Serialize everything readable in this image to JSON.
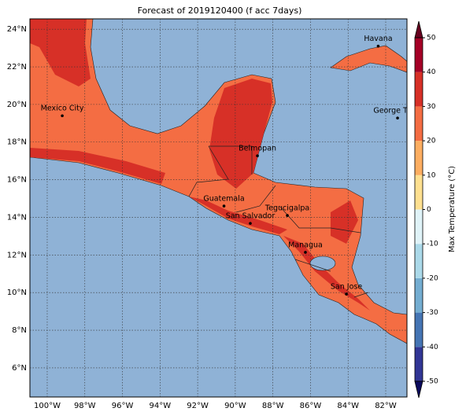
{
  "title": "Forecast of 2019120400 (f acc 7days)",
  "map": {
    "xlim": [
      -100.92,
      -80.87
    ],
    "ylim": [
      4.45,
      24.55
    ],
    "xticks": [
      {
        "value": -100,
        "label": "100°W"
      },
      {
        "value": -98,
        "label": "98°W"
      },
      {
        "value": -96,
        "label": "96°W"
      },
      {
        "value": -94,
        "label": "94°W"
      },
      {
        "value": -92,
        "label": "92°W"
      },
      {
        "value": -90,
        "label": "90°W"
      },
      {
        "value": -88,
        "label": "88°W"
      },
      {
        "value": -86,
        "label": "86°W"
      },
      {
        "value": -84,
        "label": "84°W"
      },
      {
        "value": -82,
        "label": "82°W"
      }
    ],
    "yticks": [
      {
        "value": 6,
        "label": "6°N"
      },
      {
        "value": 8,
        "label": "8°N"
      },
      {
        "value": 10,
        "label": "10°N"
      },
      {
        "value": 12,
        "label": "12°N"
      },
      {
        "value": 14,
        "label": "14°N"
      },
      {
        "value": 16,
        "label": "16°N"
      },
      {
        "value": 18,
        "label": "18°N"
      },
      {
        "value": 20,
        "label": "20°N"
      },
      {
        "value": 22,
        "label": "22°N"
      },
      {
        "value": 24,
        "label": "24°N"
      }
    ],
    "grid": true,
    "cities": [
      {
        "name": "Havana",
        "lon": -82.4,
        "lat": 23.1
      },
      {
        "name": "Mexico City",
        "lon": -99.2,
        "lat": 19.4
      },
      {
        "name": "George Town",
        "lon": -81.37,
        "lat": 19.28
      },
      {
        "name": "Belmopan",
        "lon": -88.82,
        "lat": 17.27
      },
      {
        "name": "Guatemala",
        "lon": -90.6,
        "lat": 14.6
      },
      {
        "name": "San Salvador",
        "lon": -89.2,
        "lat": 13.68
      },
      {
        "name": "Tegucigalpa",
        "lon": -87.23,
        "lat": 14.1
      },
      {
        "name": "Managua",
        "lon": -86.27,
        "lat": 12.14
      },
      {
        "name": "San Jose",
        "lon": -84.09,
        "lat": 9.92
      }
    ]
  },
  "colorbar": {
    "label": "Max Temperature (°C)",
    "ylim": [
      -50,
      50
    ],
    "ticks": [
      -50,
      -40,
      -30,
      -20,
      -10,
      0,
      10,
      20,
      30,
      40,
      50
    ],
    "colors": [
      "#313695",
      "#4575b4",
      "#74add1",
      "#abd9e9",
      "#e0f3f8",
      "#fffbd0",
      "#fee090",
      "#fdae61",
      "#f46d43",
      "#d73027",
      "#a50026"
    ],
    "under_color": "#0b0b5e",
    "over_color": "#67001f"
  }
}
